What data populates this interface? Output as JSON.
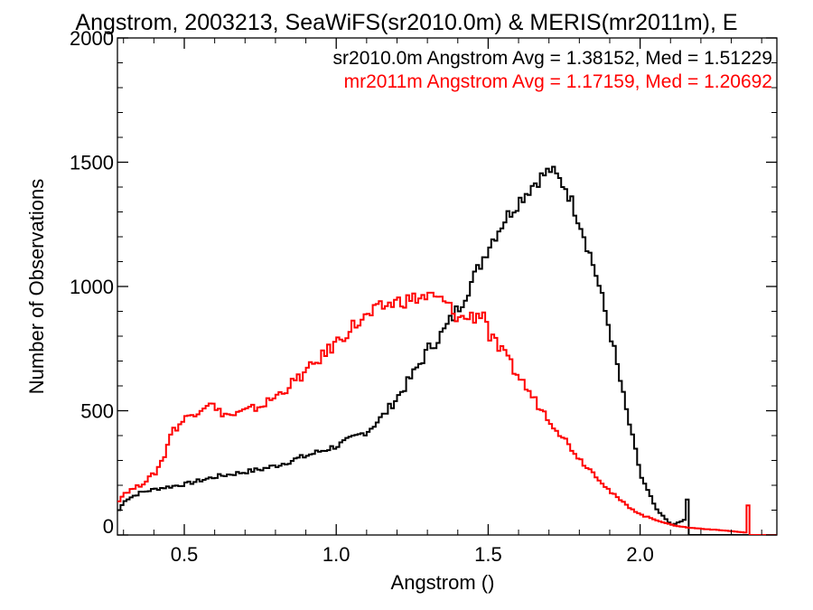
{
  "chart_data": {
    "type": "line",
    "title": "Angstrom, 2003213, SeaWiFS(sr2010.0m) & MERIS(mr2011m), E",
    "xlabel": "Angstrom ()",
    "ylabel": "Number of Observations",
    "xlim": [
      0.28,
      2.45
    ],
    "ylim": [
      0,
      2000
    ],
    "x_ticks": [
      "0.5",
      "1.0",
      "1.5",
      "2.0"
    ],
    "y_ticks": [
      "0",
      "500",
      "1000",
      "1500",
      "2000"
    ],
    "grid": false,
    "annotations": [
      {
        "text": "sr2010.0m Angstrom Avg = 1.38152, Med = 1.51229",
        "color": "#000000"
      },
      {
        "text": "mr2011m Angstrom Avg = 1.17159, Med = 1.20692",
        "color": "#ff0000"
      }
    ],
    "series": [
      {
        "color": "#000000",
        "x": [
          0.28,
          0.3,
          0.35,
          0.4,
          0.45,
          0.5,
          0.55,
          0.6,
          0.65,
          0.7,
          0.75,
          0.8,
          0.85,
          0.9,
          0.95,
          1.0,
          1.05,
          1.1,
          1.15,
          1.2,
          1.25,
          1.3,
          1.35,
          1.4,
          1.45,
          1.5,
          1.55,
          1.6,
          1.65,
          1.7,
          1.75,
          1.8,
          1.85,
          1.9,
          1.95,
          2.0,
          2.05,
          2.1,
          2.14,
          2.15,
          2.16,
          2.2,
          2.45
        ],
        "y": [
          100,
          140,
          170,
          185,
          195,
          205,
          220,
          235,
          245,
          255,
          265,
          280,
          300,
          320,
          340,
          360,
          390,
          420,
          480,
          560,
          650,
          750,
          820,
          920,
          1040,
          1170,
          1270,
          1350,
          1420,
          1470,
          1400,
          1250,
          1050,
          800,
          500,
          230,
          100,
          40,
          60,
          140,
          0,
          0,
          0
        ]
      },
      {
        "color": "#ff0000",
        "x": [
          0.28,
          0.3,
          0.35,
          0.4,
          0.43,
          0.45,
          0.5,
          0.55,
          0.58,
          0.6,
          0.65,
          0.7,
          0.75,
          0.8,
          0.85,
          0.9,
          0.95,
          1.0,
          1.05,
          1.1,
          1.15,
          1.2,
          1.25,
          1.3,
          1.35,
          1.4,
          1.45,
          1.48,
          1.5,
          1.55,
          1.6,
          1.65,
          1.7,
          1.75,
          1.8,
          1.85,
          1.9,
          1.95,
          2.0,
          2.05,
          2.1,
          2.15,
          2.2,
          2.25,
          2.3,
          2.34,
          2.35,
          2.36,
          2.45
        ],
        "y": [
          140,
          170,
          200,
          250,
          320,
          410,
          470,
          510,
          540,
          500,
          480,
          500,
          520,
          560,
          610,
          660,
          720,
          780,
          840,
          880,
          920,
          940,
          950,
          960,
          940,
          870,
          880,
          900,
          800,
          720,
          630,
          540,
          460,
          380,
          300,
          240,
          170,
          120,
          80,
          60,
          40,
          30,
          25,
          20,
          15,
          10,
          120,
          0,
          0
        ]
      }
    ]
  }
}
